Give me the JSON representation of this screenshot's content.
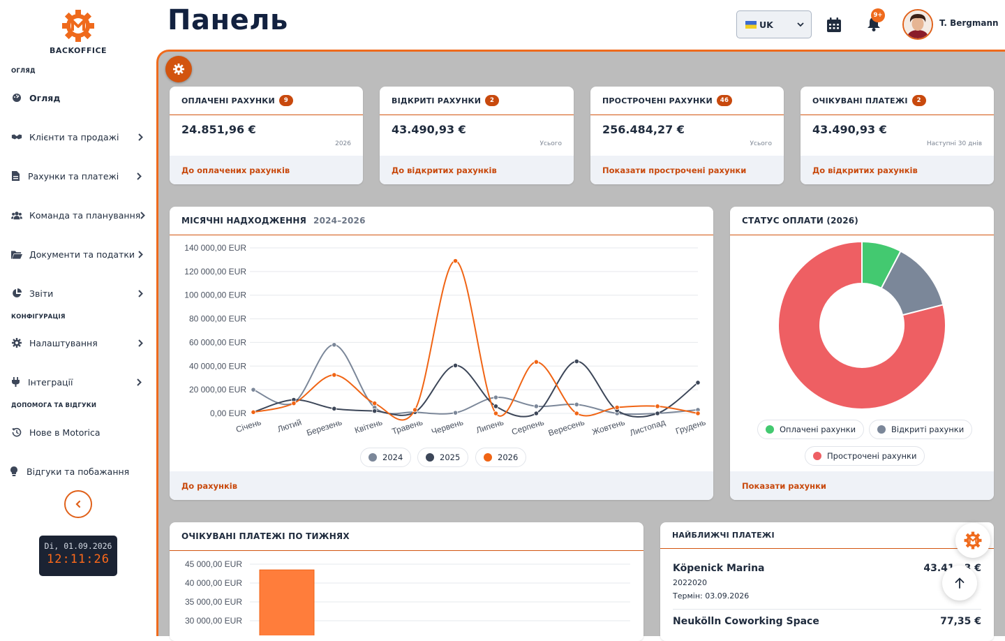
{
  "app": {
    "logo_text": "BACKOFFICE"
  },
  "sidebar": {
    "sections": {
      "overview": "ОГЛЯД",
      "config": "КОНФІГУРАЦІЯ",
      "help": "ДОПОМОГА ТА ВІДГУКИ"
    },
    "items": [
      {
        "label": "Огляд",
        "icon": "dashboard-icon",
        "active": true
      },
      {
        "label": "Клієнти та продажі",
        "icon": "handshake-icon"
      },
      {
        "label": "Рахунки та платежі",
        "icon": "invoice-icon"
      },
      {
        "label": "Команда та планування",
        "icon": "team-icon"
      },
      {
        "label": "Документи та податки",
        "icon": "folder-icon"
      },
      {
        "label": "Звіти",
        "icon": "pie-icon"
      },
      {
        "label": "Налаштування",
        "icon": "gear-icon"
      },
      {
        "label": "Інтеграції",
        "icon": "plug-icon"
      },
      {
        "label": "Нове в Motorica",
        "icon": "history-icon"
      },
      {
        "label": "Відгуки та побажання",
        "icon": "lightbulb-icon"
      }
    ],
    "clock": {
      "date": "Di, 01.09.2026",
      "time": "12:11:26"
    }
  },
  "header": {
    "title": "Панель",
    "language": "UK",
    "notifications_badge": "9+",
    "user_name": "T. Bergmann"
  },
  "stats": [
    {
      "title": "ОПЛАЧЕНІ РАХУНКИ",
      "count": "9",
      "amount": "24.851,96 €",
      "sub": "2026",
      "link": "До оплачених рахунків"
    },
    {
      "title": "ВІДКРИТІ РАХУНКИ",
      "count": "2",
      "amount": "43.490,93 €",
      "sub": "Усього",
      "link": "До відкритих рахунків"
    },
    {
      "title": "ПРОСТРОЧЕНІ РАХУНКИ",
      "count": "46",
      "amount": "256.484,27 €",
      "sub": "Усього",
      "link": "Показати прострочені рахунки"
    },
    {
      "title": "ОЧІКУВАНІ ПЛАТЕЖІ",
      "count": "2",
      "amount": "43.490,93 €",
      "sub": "Наступні 30 днів",
      "link": "До відкритих рахунків"
    }
  ],
  "monthly": {
    "title": "МІСЯЧНІ НАДХОДЖЕННЯ",
    "range": "2024–2026",
    "link": "До рахунків"
  },
  "status": {
    "title": "СТАТУС ОПЛАТИ (2026)",
    "link": "Показати рахунки"
  },
  "weekly": {
    "title": "ОЧІКУВАНІ ПЛАТЕЖІ ПО ТИЖНЯХ"
  },
  "upcoming": {
    "title": "НАЙБЛИЖЧІ ПЛАТЕЖІ",
    "items": [
      {
        "name": "Köpenick Marina",
        "amount": "43.41…3 €",
        "number": "2022020",
        "due": "Термін: 03.09.2026"
      },
      {
        "name": "Neukölln Coworking Space",
        "amount": "77,35 €"
      }
    ]
  },
  "colors": {
    "accent": "#ef6a1c",
    "c2024": "#7b8799",
    "c2025": "#3c4658",
    "c2026": "#f06414",
    "paid": "#43c970",
    "open": "#7b8799",
    "overdue": "#ee5f63"
  },
  "chart_data": [
    {
      "type": "line",
      "categories": [
        "Січень",
        "Лютий",
        "Березень",
        "Квітень",
        "Травень",
        "Червень",
        "Липень",
        "Серпень",
        "Вересень",
        "Жовтень",
        "Листопад",
        "Грудень"
      ],
      "series": [
        {
          "name": "2024",
          "values": [
            20000,
            9000,
            58000,
            5000,
            1000,
            500,
            13500,
            6000,
            7500,
            0,
            0,
            3000
          ]
        },
        {
          "name": "2025",
          "values": [
            1000,
            11500,
            4000,
            2000,
            1000,
            40500,
            6000,
            0,
            44000,
            2500,
            0,
            26000
          ]
        },
        {
          "name": "2026",
          "values": [
            1000,
            8500,
            32500,
            8500,
            3000,
            129000,
            0,
            43500,
            0,
            5000,
            6000,
            0
          ]
        }
      ],
      "ylim": [
        0,
        140000
      ],
      "yticks": [
        "0,00 EUR",
        "20 000,00 EUR",
        "40 000,00 EUR",
        "60 000,00 EUR",
        "80 000,00 EUR",
        "100 000,00 EUR",
        "120 000,00 EUR",
        "140 000,00 EUR"
      ],
      "legend": "bottom"
    },
    {
      "type": "pie",
      "labels": [
        "Оплачені рахунки",
        "Відкриті рахунки",
        "Прострочені рахунки"
      ],
      "values": [
        24851.96,
        43490.93,
        256484.27
      ],
      "legend": "bottom"
    },
    {
      "type": "bar",
      "values": [
        43490.93
      ],
      "yticks": [
        "30 000,00 EUR",
        "35 000,00 EUR",
        "40 000,00 EUR",
        "45 000,00 EUR"
      ],
      "ylim": [
        0,
        45000
      ]
    }
  ]
}
